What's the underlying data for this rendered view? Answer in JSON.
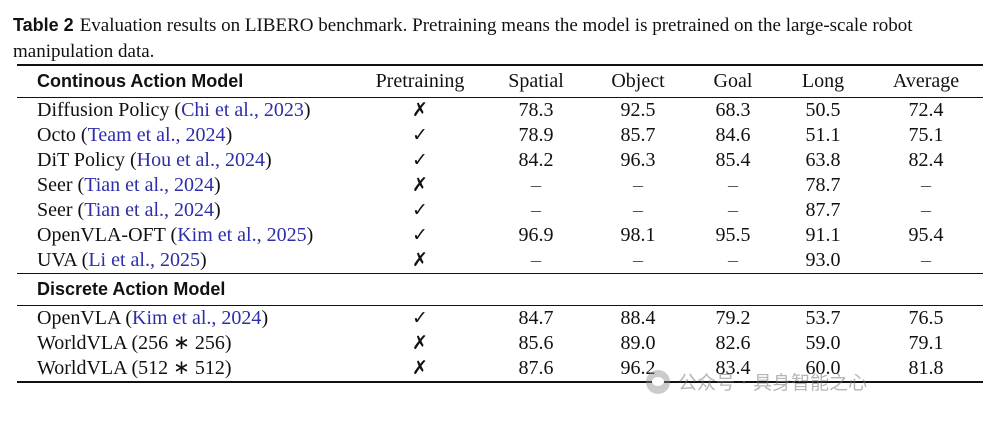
{
  "caption": {
    "label": "Table 2",
    "text": "Evaluation results on LIBERO benchmark. Pretraining means the model is pretrained on the large-scale robot manipulation data."
  },
  "table": {
    "headers": [
      "Continous Action Model",
      "Pretraining",
      "Spatial",
      "Object",
      "Goal",
      "Long",
      "Average"
    ],
    "continuous_rows": [
      {
        "name": "Diffusion Policy",
        "cite": "Chi et al., 2023",
        "pretraining": "✗",
        "spatial": "78.3",
        "object": "92.5",
        "goal": "68.3",
        "long": "50.5",
        "average": "72.4"
      },
      {
        "name": "Octo",
        "cite": "Team et al., 2024",
        "pretraining": "✓",
        "spatial": "78.9",
        "object": "85.7",
        "goal": "84.6",
        "long": "51.1",
        "average": "75.1"
      },
      {
        "name": "DiT Policy",
        "cite": "Hou et al., 2024",
        "pretraining": "✓",
        "spatial": "84.2",
        "object": "96.3",
        "goal": "85.4",
        "long": "63.8",
        "average": "82.4"
      },
      {
        "name": "Seer",
        "cite": "Tian et al., 2024",
        "pretraining": "✗",
        "spatial": "–",
        "object": "–",
        "goal": "–",
        "long": "78.7",
        "average": "–"
      },
      {
        "name": "Seer",
        "cite": "Tian et al., 2024",
        "pretraining": "✓",
        "spatial": "–",
        "object": "–",
        "goal": "–",
        "long": "87.7",
        "average": "–"
      },
      {
        "name": "OpenVLA-OFT",
        "cite": "Kim et al., 2025",
        "pretraining": "✓",
        "spatial": "96.9",
        "object": "98.1",
        "goal": "95.5",
        "long": "91.1",
        "average": "95.4"
      },
      {
        "name": "UVA",
        "cite": "Li et al., 2025",
        "pretraining": "✗",
        "spatial": "–",
        "object": "–",
        "goal": "–",
        "long": "93.0",
        "average": "–"
      }
    ],
    "discrete_header": "Discrete Action Model",
    "discrete_rows": [
      {
        "name": "OpenVLA",
        "cite": "Kim et al., 2024",
        "pretraining": "✓",
        "spatial": "84.7",
        "object": "88.4",
        "goal": "79.2",
        "long": "53.7",
        "average": "76.5"
      },
      {
        "name": "WorldVLA (256 ∗ 256)",
        "cite": "",
        "pretraining": "✗",
        "spatial": "85.6",
        "object": "89.0",
        "goal": "82.6",
        "long": "59.0",
        "average": "79.1"
      },
      {
        "name": "WorldVLA (512 ∗ 512)",
        "cite": "",
        "pretraining": "✗",
        "spatial": "87.6",
        "object": "96.2",
        "goal": "83.4",
        "long": "60.0",
        "average": "81.8"
      }
    ]
  },
  "watermark": {
    "icon": "wechat-icon",
    "text": "公众号 · 具身智能之心"
  }
}
